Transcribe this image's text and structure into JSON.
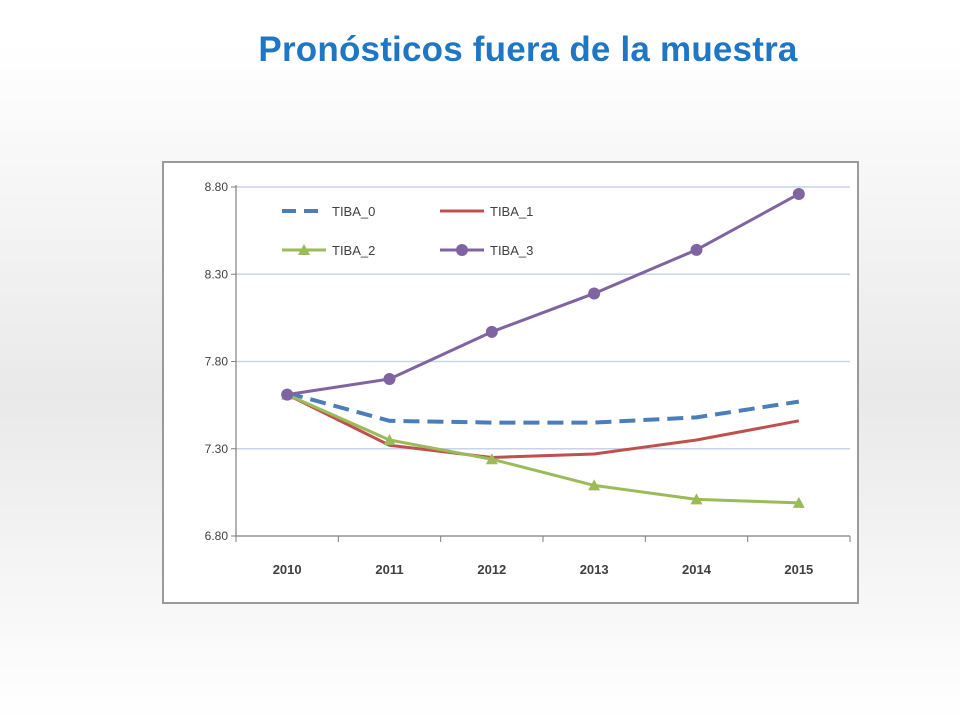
{
  "title": "Pronósticos fuera  de la muestra",
  "chart_data": {
    "type": "line",
    "categories": [
      "2010",
      "2011",
      "2012",
      "2013",
      "2014",
      "2015"
    ],
    "ylim": [
      6.8,
      8.8
    ],
    "yticks": [
      "6.80",
      "7.30",
      "7.80",
      "8.30",
      "8.80"
    ],
    "grid": true,
    "legend": "top-left",
    "series": [
      {
        "name": "TIBA_0",
        "color": "#4a7ebb",
        "style": "dashed",
        "marker": "none",
        "values": [
          7.62,
          7.46,
          7.45,
          7.45,
          7.48,
          7.57
        ]
      },
      {
        "name": "TIBA_1",
        "color": "#c0504d",
        "style": "solid",
        "marker": "none",
        "values": [
          7.61,
          7.32,
          7.25,
          7.27,
          7.35,
          7.46
        ]
      },
      {
        "name": "TIBA_2",
        "color": "#9bbb59",
        "style": "solid",
        "marker": "triangle",
        "values": [
          7.61,
          7.35,
          7.24,
          7.09,
          7.01,
          6.99
        ]
      },
      {
        "name": "TIBA_3",
        "color": "#8064a2",
        "style": "solid",
        "marker": "circle",
        "values": [
          7.61,
          7.7,
          7.97,
          8.19,
          8.44,
          8.76
        ]
      }
    ]
  }
}
